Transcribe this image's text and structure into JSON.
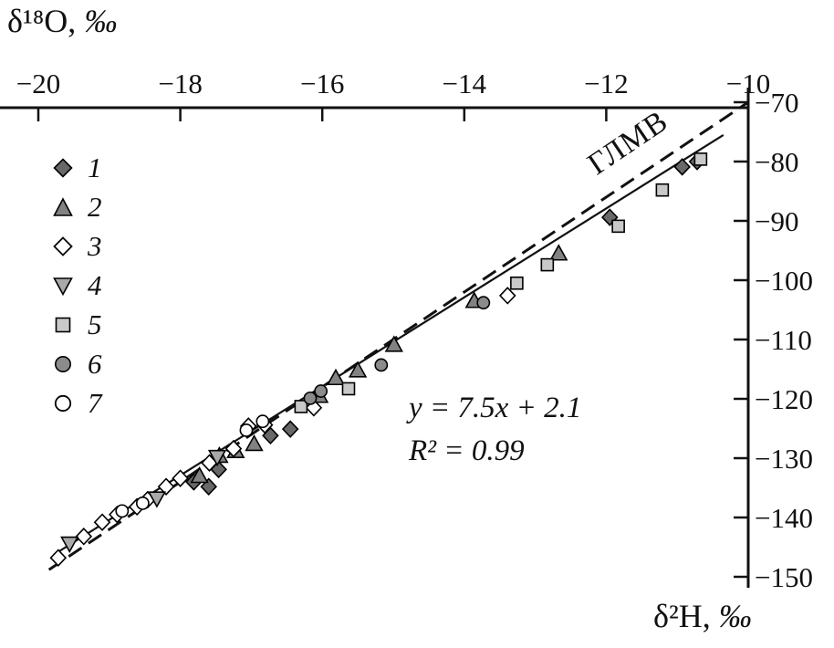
{
  "page": {
    "background": "#ffffff"
  },
  "chart_data": {
    "type": "scatter",
    "x_axis": {
      "title": "δ¹⁸O,",
      "permille": "‰",
      "position": "top",
      "range": [
        -20.5,
        -10
      ],
      "ticks": [
        {
          "v": -20,
          "label": "−20"
        },
        {
          "v": -18,
          "label": "−18"
        },
        {
          "v": -16,
          "label": "−16"
        },
        {
          "v": -14,
          "label": "−14"
        },
        {
          "v": -12,
          "label": "−12"
        },
        {
          "v": -10,
          "label": "−10"
        }
      ]
    },
    "y_axis": {
      "title": "δ²H,",
      "permille": "‰",
      "position": "right",
      "range": [
        -150,
        -70
      ],
      "ticks": [
        {
          "v": -70,
          "label": "−70"
        },
        {
          "v": -80,
          "label": "−80"
        },
        {
          "v": -90,
          "label": "−90"
        },
        {
          "v": -100,
          "label": "−100"
        },
        {
          "v": -110,
          "label": "−110"
        },
        {
          "v": -120,
          "label": "−120"
        },
        {
          "v": -130,
          "label": "−130"
        },
        {
          "v": -140,
          "label": "−140"
        },
        {
          "v": -150,
          "label": "−150"
        }
      ]
    },
    "annotations": {
      "equation_line1": "y = 7.5x + 2.1",
      "equation_line2": "R² = 0.99",
      "gmwl_label": "ГЛМВ"
    },
    "lines": {
      "regression": {
        "slope": 7.5,
        "intercept": 2.1,
        "x_start": -19.78,
        "x_end": -10.35,
        "style": "solid"
      },
      "gmwl": {
        "slope": 8.0,
        "intercept": 10.0,
        "x_start": -19.85,
        "x_end": -10.02,
        "style": "dashed"
      }
    },
    "series": [
      {
        "label": "1",
        "marker": "diamond",
        "fill": "#686868",
        "points": [
          [
            -10.93,
            -80.9
          ],
          [
            -10.72,
            -80.0
          ],
          [
            -11.95,
            -89.4
          ],
          [
            -16.45,
            -125.1
          ],
          [
            -16.73,
            -126.2
          ],
          [
            -17.46,
            -131.9
          ],
          [
            -17.81,
            -134.0
          ],
          [
            -17.6,
            -134.8
          ]
        ]
      },
      {
        "label": "2",
        "marker": "triangle-up",
        "fill": "#828282",
        "points": [
          [
            -12.67,
            -95.5
          ],
          [
            -13.86,
            -103.5
          ],
          [
            -14.99,
            -110.9
          ],
          [
            -15.5,
            -115.2
          ],
          [
            -15.81,
            -116.5
          ],
          [
            -16.04,
            -119.5
          ],
          [
            -16.96,
            -127.6
          ],
          [
            -17.22,
            -128.8
          ],
          [
            -17.45,
            -129.6
          ],
          [
            -17.73,
            -133.0
          ]
        ]
      },
      {
        "label": "3",
        "marker": "diamond",
        "fill": "#ffffff",
        "points": [
          [
            -13.39,
            -102.6
          ],
          [
            -16.12,
            -121.5
          ],
          [
            -16.81,
            -124.4
          ],
          [
            -17.04,
            -124.6
          ],
          [
            -17.25,
            -128.4
          ],
          [
            -17.59,
            -130.8
          ],
          [
            -18.0,
            -133.4
          ],
          [
            -18.2,
            -134.8
          ],
          [
            -18.46,
            -137.0
          ],
          [
            -18.61,
            -138.2
          ],
          [
            -18.89,
            -139.5
          ],
          [
            -19.1,
            -140.8
          ],
          [
            -19.36,
            -143.2
          ],
          [
            -19.72,
            -146.8
          ]
        ]
      },
      {
        "label": "4",
        "marker": "triangle-down",
        "fill": "#a9a9a9",
        "points": [
          [
            -17.48,
            -129.8
          ],
          [
            -18.33,
            -136.8
          ],
          [
            -19.56,
            -144.4
          ]
        ]
      },
      {
        "label": "5",
        "marker": "square",
        "fill": "#c9c9c9",
        "points": [
          [
            -10.67,
            -79.6
          ],
          [
            -11.21,
            -84.8
          ],
          [
            -11.83,
            -90.9
          ],
          [
            -12.83,
            -97.4
          ],
          [
            -13.26,
            -100.5
          ],
          [
            -15.63,
            -118.3
          ],
          [
            -16.3,
            -121.3
          ]
        ]
      },
      {
        "label": "6",
        "marker": "circle",
        "fill": "#8b8b8b",
        "points": [
          [
            -13.73,
            -103.8
          ],
          [
            -15.17,
            -114.3
          ],
          [
            -16.02,
            -118.7
          ],
          [
            -16.17,
            -119.9
          ]
        ]
      },
      {
        "label": "7",
        "marker": "circle",
        "fill": "#ffffff",
        "points": [
          [
            -16.84,
            -123.8
          ],
          [
            -17.07,
            -125.3
          ],
          [
            -18.53,
            -137.6
          ],
          [
            -18.82,
            -138.9
          ]
        ]
      }
    ]
  }
}
